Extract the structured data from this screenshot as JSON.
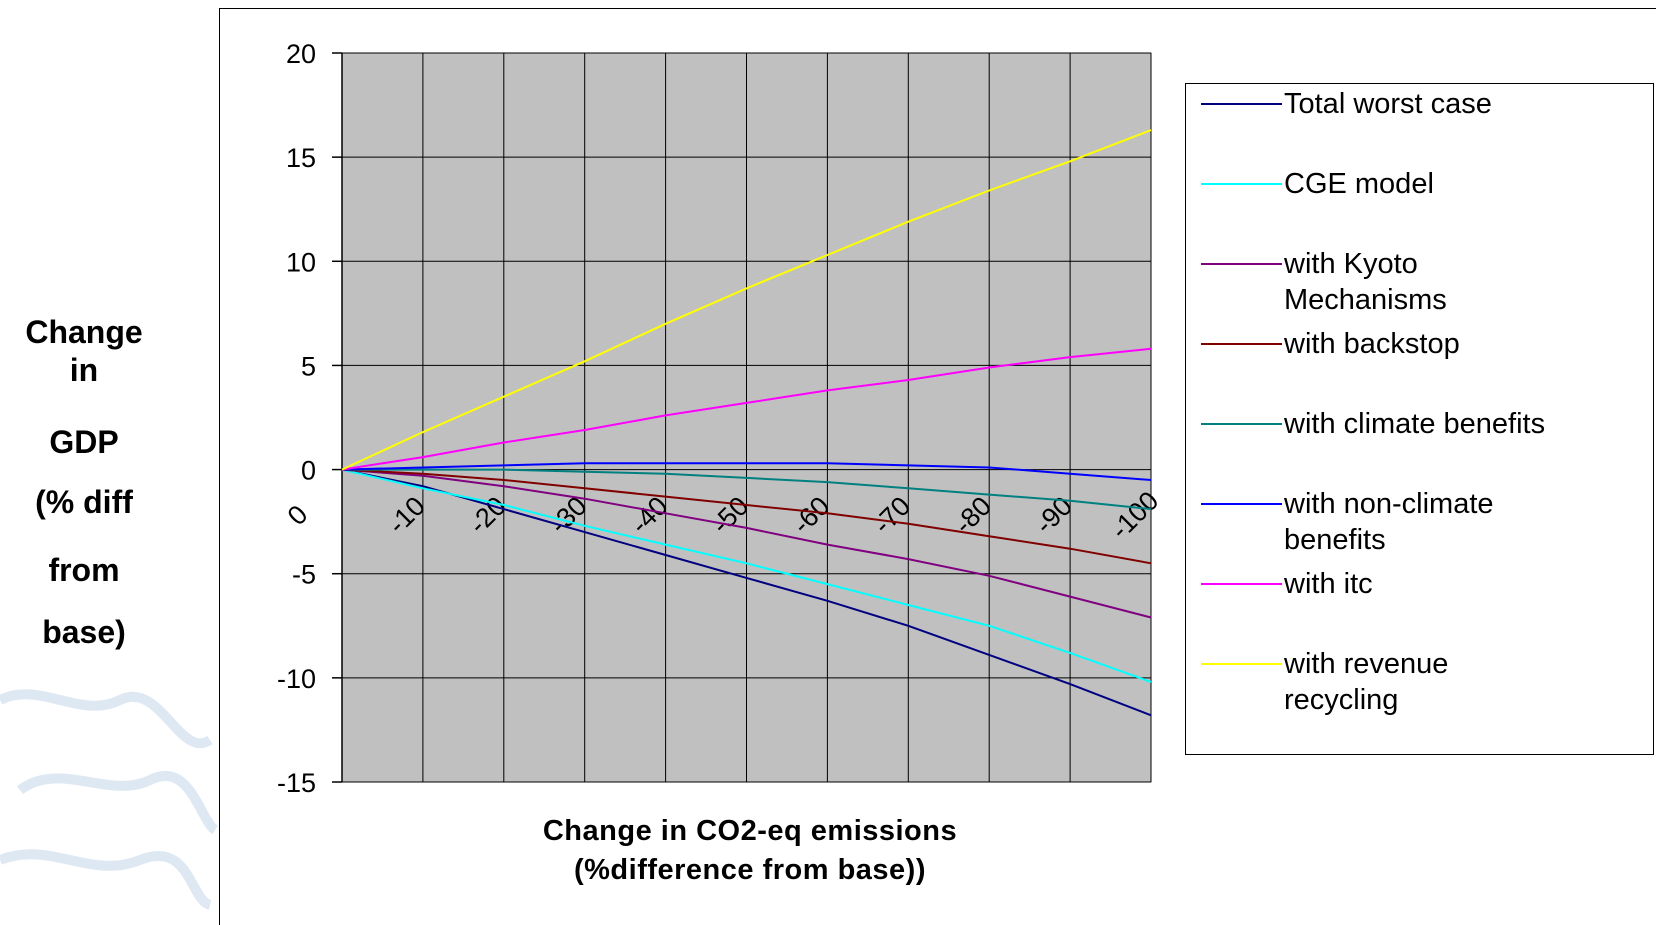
{
  "side_label": [
    "Change",
    "in",
    "GDP",
    "(% diff",
    "from",
    "base)"
  ],
  "chart_data": {
    "type": "line",
    "title": "",
    "xlabel_lines": [
      "Change in CO2-eq emissions",
      "(%difference from base))"
    ],
    "ylabel": "",
    "ylim": [
      -15,
      20
    ],
    "yticks": [
      "20",
      "15",
      "10",
      "5",
      "0",
      "-5",
      "-10",
      "-15"
    ],
    "xlim": [
      0,
      -100
    ],
    "xticks": [
      "0",
      "-10",
      "-20",
      "-30",
      "-40",
      "-50",
      "-60",
      "-70",
      "-80",
      "-90",
      "-100"
    ],
    "grid": true,
    "legend_position": "right",
    "plot_background": "#c0c0c0",
    "series": [
      {
        "name": "Total worst case",
        "color": "#000080",
        "x": [
          0,
          -10,
          -20,
          -30,
          -40,
          -50,
          -60,
          -70,
          -80,
          -90,
          -100
        ],
        "y": [
          0,
          -0.8,
          -1.9,
          -3.0,
          -4.1,
          -5.2,
          -6.3,
          -7.5,
          -8.9,
          -10.3,
          -11.8
        ]
      },
      {
        "name": "CGE model",
        "color": "#00ffff",
        "x": [
          0,
          -10,
          -20,
          -30,
          -40,
          -50,
          -60,
          -70,
          -80,
          -90,
          -100
        ],
        "y": [
          0,
          -0.9,
          -1.7,
          -2.7,
          -3.6,
          -4.5,
          -5.5,
          -6.5,
          -7.5,
          -8.8,
          -10.2
        ]
      },
      {
        "name": "with Kyoto Mechanisms",
        "color": "#800080",
        "x": [
          0,
          -10,
          -20,
          -30,
          -40,
          -50,
          -60,
          -70,
          -80,
          -90,
          -100
        ],
        "y": [
          0,
          -0.3,
          -0.8,
          -1.4,
          -2.1,
          -2.8,
          -3.6,
          -4.3,
          -5.1,
          -6.1,
          -7.1
        ]
      },
      {
        "name": "with backstop",
        "color": "#800000",
        "x": [
          0,
          -10,
          -20,
          -30,
          -40,
          -50,
          -60,
          -70,
          -80,
          -90,
          -100
        ],
        "y": [
          0,
          -0.2,
          -0.5,
          -0.9,
          -1.3,
          -1.7,
          -2.1,
          -2.6,
          -3.2,
          -3.8,
          -4.5
        ]
      },
      {
        "name": "with climate benefits",
        "color": "#008080",
        "x": [
          0,
          -10,
          -20,
          -30,
          -40,
          -50,
          -60,
          -70,
          -80,
          -90,
          -100
        ],
        "y": [
          0,
          0,
          0,
          -0.1,
          -0.2,
          -0.4,
          -0.6,
          -0.9,
          -1.2,
          -1.5,
          -1.9
        ]
      },
      {
        "name": "with non-climate benefits",
        "color": "#0000ff",
        "x": [
          0,
          -10,
          -20,
          -30,
          -40,
          -50,
          -60,
          -70,
          -80,
          -90,
          -100
        ],
        "y": [
          0,
          0.1,
          0.2,
          0.3,
          0.3,
          0.3,
          0.3,
          0.2,
          0.1,
          -0.2,
          -0.5
        ]
      },
      {
        "name": "with itc",
        "color": "#ff00ff",
        "x": [
          0,
          -10,
          -20,
          -30,
          -40,
          -50,
          -60,
          -70,
          -80,
          -90,
          -100
        ],
        "y": [
          0,
          0.6,
          1.3,
          1.9,
          2.6,
          3.2,
          3.8,
          4.3,
          4.9,
          5.4,
          5.8
        ]
      },
      {
        "name": "with revenue recycling",
        "color": "#ffff00",
        "x": [
          0,
          -10,
          -20,
          -30,
          -40,
          -50,
          -60,
          -70,
          -80,
          -90,
          -100
        ],
        "y": [
          0,
          1.8,
          3.5,
          5.2,
          7.0,
          8.7,
          10.3,
          11.9,
          13.4,
          14.8,
          16.3
        ]
      }
    ]
  },
  "legend": {
    "entries": [
      {
        "lines": [
          "Total worst case"
        ]
      },
      {
        "lines": [
          "CGE model"
        ]
      },
      {
        "lines": [
          "with Kyoto",
          "Mechanisms"
        ]
      },
      {
        "lines": [
          "with backstop"
        ]
      },
      {
        "lines": [
          "with climate benefits"
        ]
      },
      {
        "lines": [
          "with non-climate",
          "benefits"
        ]
      },
      {
        "lines": [
          "with itc"
        ]
      },
      {
        "lines": [
          "with revenue",
          "recycling"
        ]
      }
    ]
  }
}
